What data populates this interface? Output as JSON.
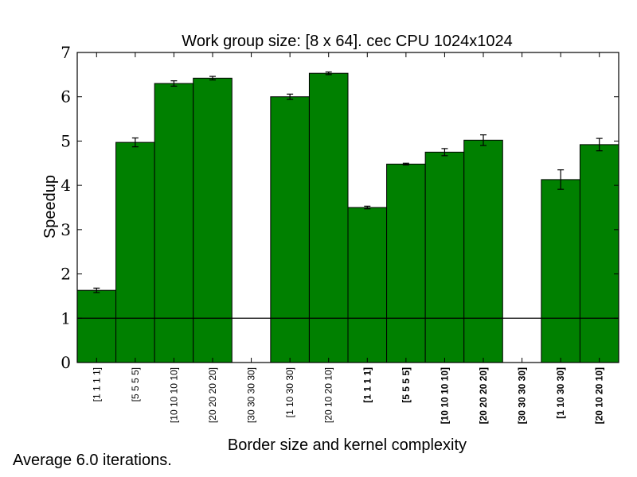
{
  "chart_data": {
    "type": "bar",
    "title": "Work group size: [8 x 64]. cec CPU 1024x1024",
    "xlabel": "Border size and kernel complexity",
    "ylabel": "Speedup",
    "ylim": [
      0,
      7
    ],
    "yticks": [
      "0",
      "1",
      "2",
      "3",
      "4",
      "5",
      "6",
      "7"
    ],
    "categories": [
      "[1 1 1 1]",
      "[5 5 5 5]",
      "[10 10 10 10]",
      "[20 20 20 20]",
      "[30 30 30 30]",
      "[1 10 30 30]",
      "[20 10 20 10]",
      "[1 1 1 1]",
      "[5 5 5 5]",
      "[10 10 10 10]",
      "[20 20 20 20]",
      "[30 30 30 30]",
      "[1 10 30 30]",
      "[20 10 20 10]"
    ],
    "bold_categories": [
      false,
      false,
      false,
      false,
      false,
      false,
      false,
      true,
      true,
      true,
      true,
      true,
      true,
      true
    ],
    "values": [
      1.63,
      4.97,
      6.3,
      6.42,
      0,
      6.0,
      6.53,
      3.5,
      4.48,
      4.75,
      5.02,
      0,
      4.13,
      4.92
    ],
    "errors": [
      0.05,
      0.1,
      0.06,
      0.04,
      0,
      0.06,
      0.03,
      0.03,
      0.02,
      0.08,
      0.12,
      0,
      0.22,
      0.14
    ],
    "reference_line": 1,
    "bar_color": "#008000",
    "grid": false
  },
  "footer": {
    "caption": "Average 6.0 iterations."
  }
}
